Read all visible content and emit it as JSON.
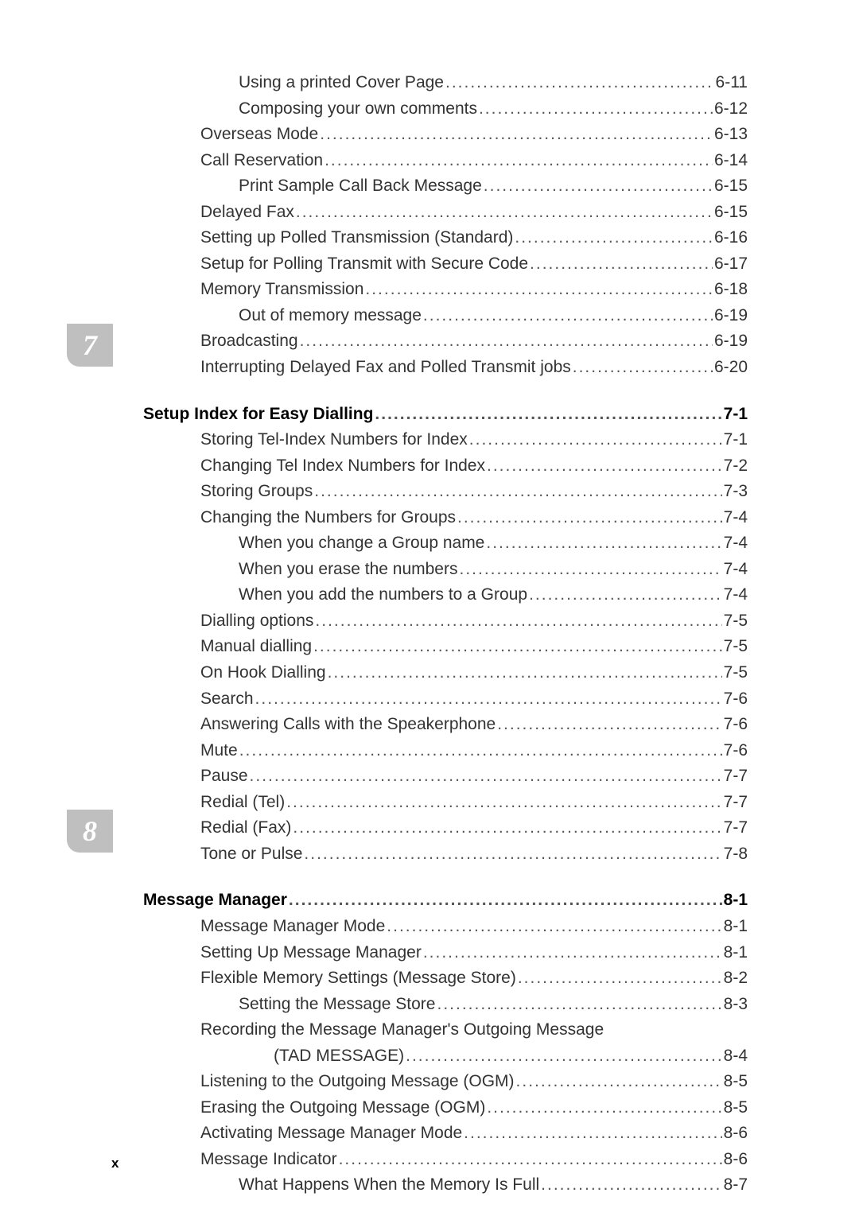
{
  "page_number_label": "x",
  "sections": [
    {
      "tab": null,
      "entries": [
        {
          "label": "Using a printed Cover Page",
          "page": "6-11",
          "indent": 3,
          "bold": false
        },
        {
          "label": "Composing your own comments",
          "page": "6-12",
          "indent": 3,
          "bold": false
        },
        {
          "label": "Overseas Mode",
          "page": "6-13",
          "indent": 2,
          "bold": false
        },
        {
          "label": "Call Reservation",
          "page": "6-14",
          "indent": 2,
          "bold": false
        },
        {
          "label": "Print Sample Call Back Message",
          "page": "6-15",
          "indent": 3,
          "bold": false
        },
        {
          "label": "Delayed Fax",
          "page": "6-15",
          "indent": 2,
          "bold": false
        },
        {
          "label": "Setting up Polled Transmission (Standard)",
          "page": "6-16",
          "indent": 2,
          "bold": false
        },
        {
          "label": "Setup for Polling Transmit with Secure Code",
          "page": "6-17",
          "indent": 2,
          "bold": false
        },
        {
          "label": "Memory Transmission",
          "page": "6-18",
          "indent": 2,
          "bold": false
        },
        {
          "label": "Out of memory message",
          "page": "6-19",
          "indent": 3,
          "bold": false
        },
        {
          "label": "Broadcasting",
          "page": "6-19",
          "indent": 2,
          "bold": false
        },
        {
          "label": "Interrupting Delayed Fax and Polled Transmit jobs",
          "page": "6-20",
          "indent": 2,
          "bold": false
        }
      ]
    },
    {
      "tab": "7",
      "entries": [
        {
          "label": "Setup Index for Easy Dialling",
          "page": "7-1",
          "indent": 0,
          "bold": true
        },
        {
          "label": "Storing Tel-Index Numbers for Index",
          "page": "7-1",
          "indent": 2,
          "bold": false
        },
        {
          "label": "Changing Tel Index Numbers for Index",
          "page": "7-2",
          "indent": 2,
          "bold": false
        },
        {
          "label": "Storing Groups",
          "page": "7-3",
          "indent": 2,
          "bold": false
        },
        {
          "label": "Changing the Numbers for Groups",
          "page": "7-4",
          "indent": 2,
          "bold": false
        },
        {
          "label": "When you change a Group name",
          "page": "7-4",
          "indent": 3,
          "bold": false
        },
        {
          "label": "When you erase the numbers",
          "page": "7-4",
          "indent": 3,
          "bold": false
        },
        {
          "label": "When you add the numbers to a Group",
          "page": "7-4",
          "indent": 3,
          "bold": false
        },
        {
          "label": "Dialling options",
          "page": "7-5",
          "indent": 1,
          "bold": false
        },
        {
          "label": "Manual dialling",
          "page": "7-5",
          "indent": 2,
          "bold": false
        },
        {
          "label": "On Hook Dialling",
          "page": "7-5",
          "indent": 2,
          "bold": false
        },
        {
          "label": "Search",
          "page": "7-6",
          "indent": 2,
          "bold": false
        },
        {
          "label": "Answering Calls with the Speakerphone",
          "page": "7-6",
          "indent": 2,
          "bold": false
        },
        {
          "label": "Mute",
          "page": "7-6",
          "indent": 2,
          "bold": false
        },
        {
          "label": "Pause",
          "page": "7-7",
          "indent": 2,
          "bold": false
        },
        {
          "label": "Redial (Tel)",
          "page": "7-7",
          "indent": 2,
          "bold": false
        },
        {
          "label": "Redial (Fax)",
          "page": "7-7",
          "indent": 2,
          "bold": false
        },
        {
          "label": "Tone or Pulse",
          "page": "7-8",
          "indent": 2,
          "bold": false
        }
      ]
    },
    {
      "tab": "8",
      "entries": [
        {
          "label": "Message Manager",
          "page": "8-1",
          "indent": 0,
          "bold": true
        },
        {
          "label": "Message Manager Mode",
          "page": "8-1",
          "indent": 1,
          "bold": false
        },
        {
          "label": "Setting Up Message Manager",
          "page": "8-1",
          "indent": 2,
          "bold": false
        },
        {
          "label": "Flexible Memory Settings (Message Store)",
          "page": "8-2",
          "indent": 2,
          "bold": false
        },
        {
          "label": "Setting the Message Store",
          "page": "8-3",
          "indent": 3,
          "bold": false
        },
        {
          "label": "Recording the Message Manager's Outgoing Message",
          "page": null,
          "indent": 2,
          "bold": false,
          "wrap_second_label": "(TAD MESSAGE)",
          "wrap_page": "8-4"
        },
        {
          "label": "Listening to the Outgoing Message (OGM)",
          "page": "8-5",
          "indent": 2,
          "bold": false
        },
        {
          "label": "Erasing the Outgoing Message (OGM)",
          "page": "8-5",
          "indent": 2,
          "bold": false
        },
        {
          "label": "Activating Message Manager Mode",
          "page": "8-6",
          "indent": 2,
          "bold": false
        },
        {
          "label": "Message Indicator",
          "page": "8-6",
          "indent": 2,
          "bold": false
        },
        {
          "label": "What Happens When the Memory Is Full",
          "page": "8-7",
          "indent": 3,
          "bold": false
        }
      ]
    }
  ]
}
